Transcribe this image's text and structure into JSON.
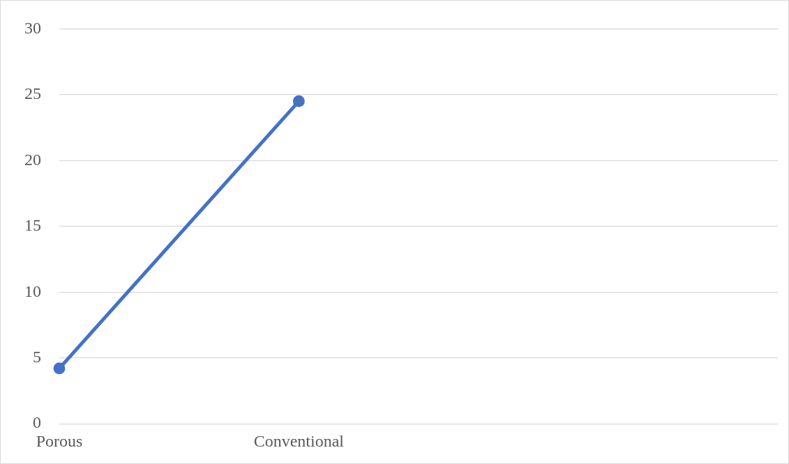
{
  "chart_data": {
    "type": "line",
    "categories": [
      "Porous",
      "Conventional",
      null,
      null
    ],
    "series": [
      {
        "color": "#4472c4",
        "values": [
          4.2,
          24.5,
          null,
          null
        ]
      }
    ],
    "ylim": [
      0,
      30
    ],
    "yticks": [
      0,
      5,
      10,
      15,
      20,
      25,
      30
    ],
    "grid": "y",
    "legend": false,
    "marker": "circle",
    "line_style": "solid"
  }
}
